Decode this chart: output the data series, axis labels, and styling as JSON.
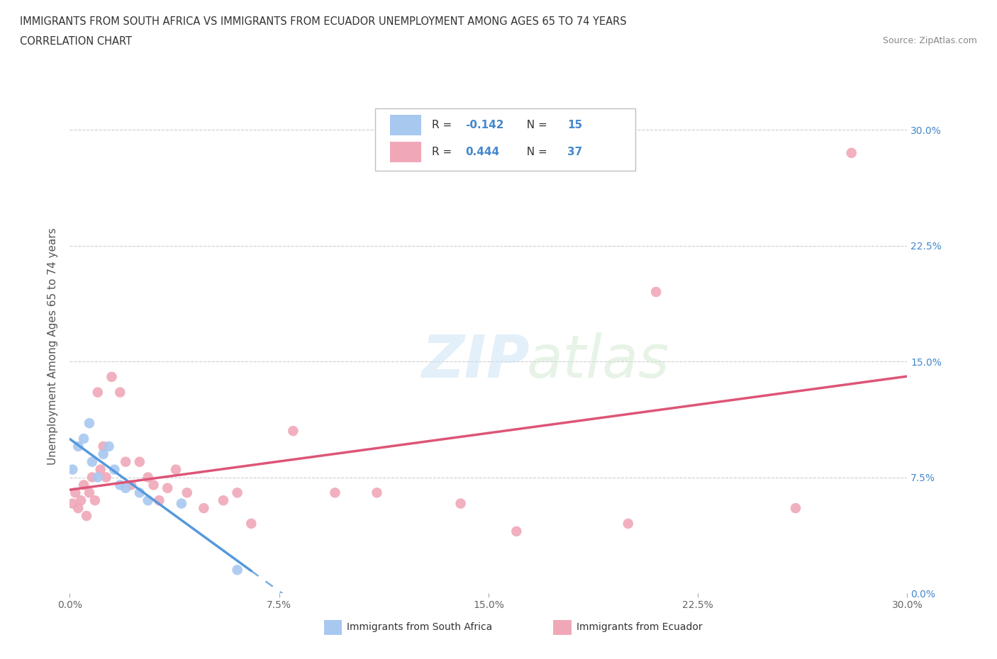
{
  "title_line1": "IMMIGRANTS FROM SOUTH AFRICA VS IMMIGRANTS FROM ECUADOR UNEMPLOYMENT AMONG AGES 65 TO 74 YEARS",
  "title_line2": "CORRELATION CHART",
  "source": "Source: ZipAtlas.com",
  "ylabel": "Unemployment Among Ages 65 to 74 years",
  "xlim": [
    0.0,
    0.3
  ],
  "ylim": [
    0.0,
    0.32
  ],
  "yticks": [
    0.0,
    0.075,
    0.15,
    0.225,
    0.3
  ],
  "xticks": [
    0.0,
    0.075,
    0.15,
    0.225,
    0.3
  ],
  "xticklabels": [
    "0.0%",
    "7.5%",
    "15.0%",
    "22.5%",
    "30.0%"
  ],
  "yticklabels_right": [
    "0.0%",
    "7.5%",
    "15.0%",
    "22.5%",
    "30.0%"
  ],
  "sa_R": -0.142,
  "sa_N": 15,
  "ec_R": 0.444,
  "ec_N": 37,
  "sa_dot_color": "#a8c8f0",
  "ec_dot_color": "#f0a8b8",
  "sa_line_color": "#5599dd",
  "ec_line_color": "#dd5577",
  "blue_text_color": "#4488cc",
  "sa_x": [
    0.001,
    0.003,
    0.005,
    0.007,
    0.008,
    0.01,
    0.012,
    0.014,
    0.016,
    0.018,
    0.02,
    0.025,
    0.028,
    0.04,
    0.06
  ],
  "sa_y": [
    0.08,
    0.095,
    0.1,
    0.11,
    0.085,
    0.075,
    0.09,
    0.095,
    0.08,
    0.07,
    0.068,
    0.065,
    0.06,
    0.058,
    0.015
  ],
  "ec_x": [
    0.001,
    0.002,
    0.003,
    0.004,
    0.005,
    0.006,
    0.007,
    0.008,
    0.009,
    0.01,
    0.011,
    0.012,
    0.013,
    0.015,
    0.018,
    0.02,
    0.022,
    0.025,
    0.028,
    0.03,
    0.032,
    0.035,
    0.038,
    0.042,
    0.048,
    0.055,
    0.06,
    0.065,
    0.08,
    0.095,
    0.11,
    0.14,
    0.16,
    0.2,
    0.21,
    0.26,
    0.28
  ],
  "ec_y": [
    0.058,
    0.065,
    0.055,
    0.06,
    0.07,
    0.05,
    0.065,
    0.075,
    0.06,
    0.13,
    0.08,
    0.095,
    0.075,
    0.14,
    0.13,
    0.085,
    0.07,
    0.085,
    0.075,
    0.07,
    0.06,
    0.068,
    0.08,
    0.065,
    0.055,
    0.06,
    0.065,
    0.045,
    0.105,
    0.065,
    0.065,
    0.058,
    0.04,
    0.045,
    0.195,
    0.055,
    0.285
  ]
}
